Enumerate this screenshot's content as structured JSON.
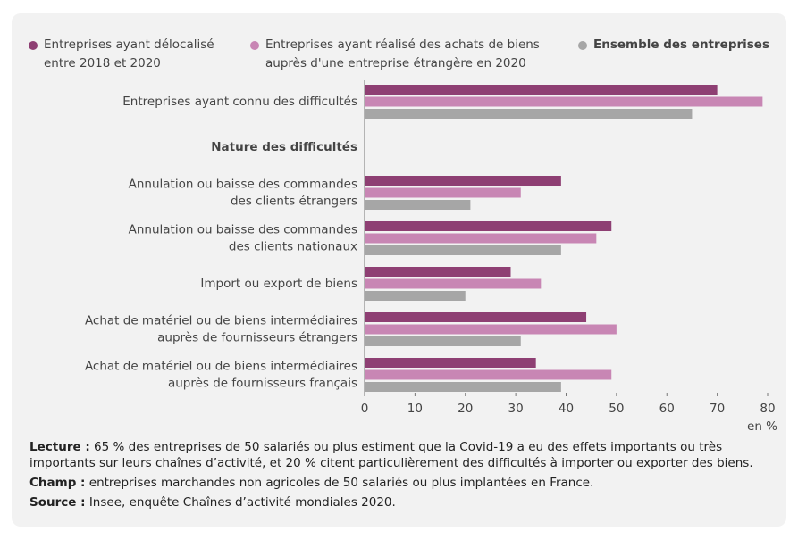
{
  "chart_data": {
    "type": "bar",
    "orientation": "horizontal",
    "categories": [
      "Entreprises ayant connu des difficultés",
      "Nature des difficultés",
      "Annulation ou baisse des commandes\ndes clients étrangers",
      "Annulation ou baisse des commandes\ndes clients nationaux",
      "Import ou export de biens",
      "Achat de matériel ou de biens intermédiaires\nauprès de fournisseurs étrangers",
      "Achat de matériel ou de biens intermédiaires\nauprès de fournisseurs français"
    ],
    "series": [
      {
        "name": "Entreprises ayant délocalisé\nentre 2018 et 2020",
        "color": "#8e3f73",
        "values": [
          70,
          null,
          39,
          49,
          29,
          44,
          34
        ]
      },
      {
        "name": "Entreprises ayant réalisé des achats de biens\nauprès d'une entreprise étrangère en 2020",
        "color": "#c886b4",
        "values": [
          79,
          null,
          31,
          46,
          35,
          50,
          49
        ]
      },
      {
        "name": "Ensemble des entreprises",
        "color": "#a6a6a6",
        "values": [
          65,
          null,
          21,
          39,
          20,
          31,
          39
        ]
      }
    ],
    "xlim": [
      0,
      80
    ],
    "xticks": [
      0,
      10,
      20,
      30,
      40,
      50,
      60,
      70,
      80
    ],
    "x_label": "en %",
    "grid": false,
    "legend": "top"
  },
  "notes": [
    {
      "label": "Lecture :",
      "text": "65 % des entreprises de 50 salariés ou plus estiment que la Covid-19 a eu des effets importants ou très importants sur leurs chaînes d’activité, et 20 % citent particulièrement des difficultés à importer ou exporter des biens."
    },
    {
      "label": "Champ :",
      "text": "entreprises marchandes non agricoles de 50 salariés ou plus implantées en France."
    },
    {
      "label": "Source :",
      "text": "Insee, enquête Chaînes d’activité mondiales 2020."
    }
  ]
}
